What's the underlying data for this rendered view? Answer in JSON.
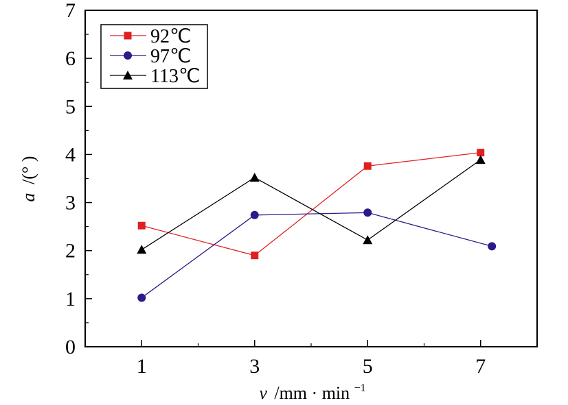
{
  "chart_data": {
    "type": "line",
    "xlabel_var": "v",
    "xlabel_unit": "/mm · min",
    "xlabel_sup": "−1",
    "ylabel_var": "a",
    "ylabel_unit": "/(° )",
    "xlim": [
      0,
      8
    ],
    "ylim": [
      0,
      7
    ],
    "x_ticks": [
      1,
      3,
      5,
      7
    ],
    "y_ticks": [
      0,
      1,
      2,
      3,
      4,
      5,
      6,
      7
    ],
    "grid": false,
    "legend_position": "top-left",
    "series": [
      {
        "name": "92℃",
        "marker": "square",
        "color": "#e02020",
        "x": [
          1,
          3,
          5,
          7
        ],
        "y": [
          2.52,
          1.9,
          3.76,
          4.04
        ]
      },
      {
        "name": "97℃",
        "marker": "circle",
        "color": "#2a1a8a",
        "x": [
          1,
          3,
          5,
          7.2
        ],
        "y": [
          1.02,
          2.74,
          2.79,
          2.09
        ]
      },
      {
        "name": "113℃",
        "marker": "triangle",
        "color": "#000000",
        "x": [
          1,
          3,
          5,
          7
        ],
        "y": [
          2.02,
          3.52,
          2.22,
          3.89
        ]
      }
    ]
  }
}
